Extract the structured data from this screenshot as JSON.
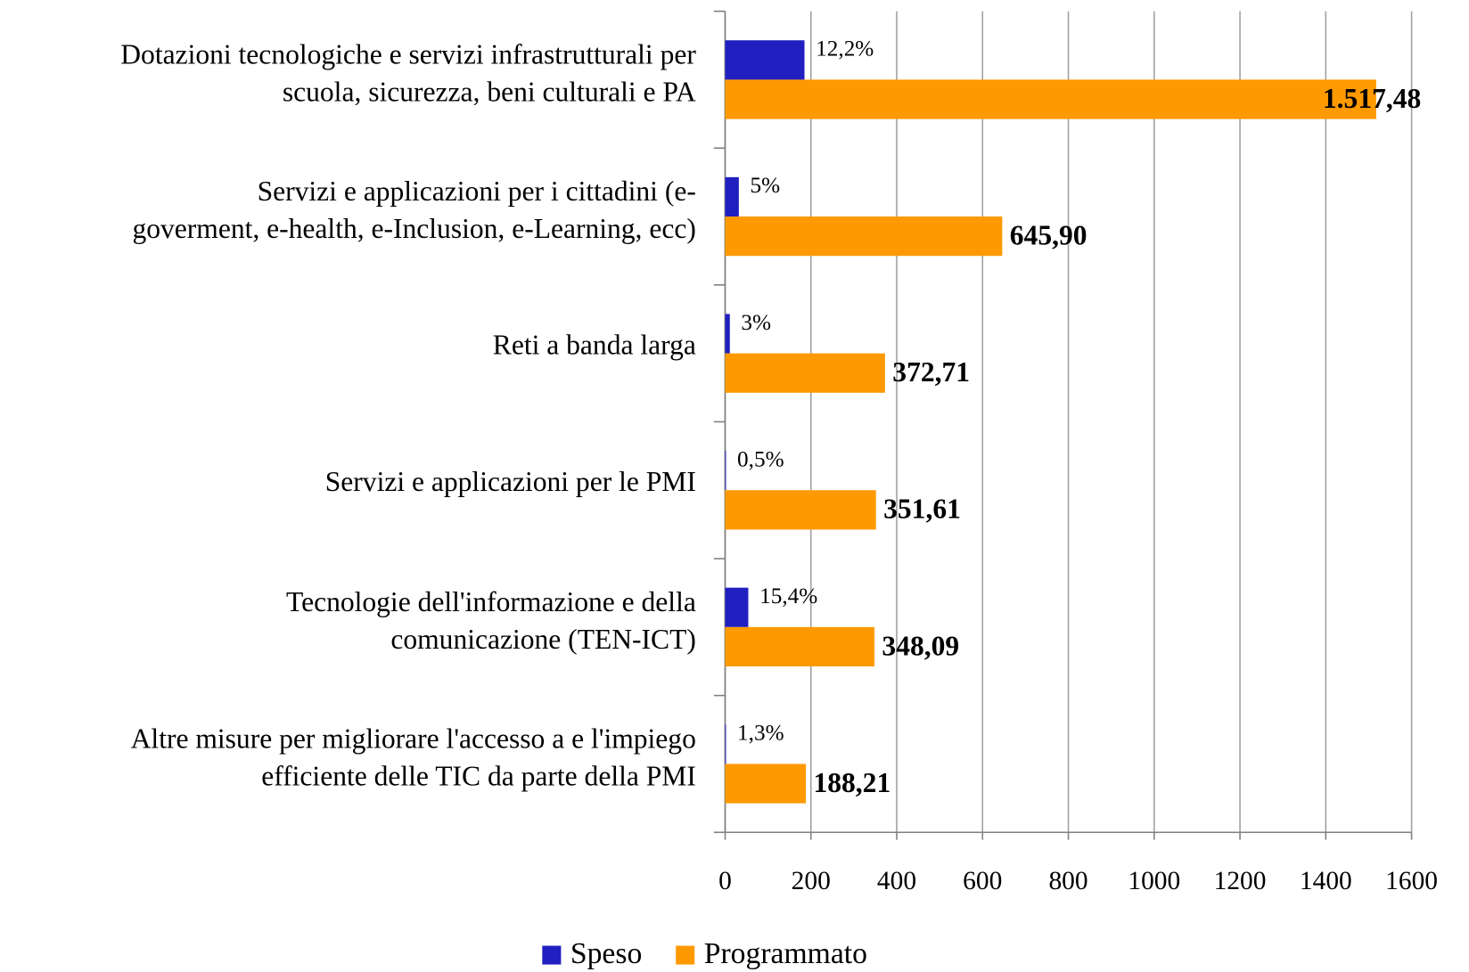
{
  "chart_data": {
    "type": "bar",
    "orientation": "horizontal",
    "categories": [
      [
        "Dotazioni tecnologiche e servizi infrastrutturali per",
        "scuola, sicurezza, beni culturali e PA"
      ],
      [
        "Servizi e applicazioni  per i cittadini (e-",
        "goverment, e-health, e-Inclusion, e-Learning, ecc)"
      ],
      [
        "Reti a banda larga"
      ],
      [
        "Servizi e applicazioni  per le PMI"
      ],
      [
        "Tecnologie dell'informazione e della",
        "comunicazione (TEN-ICT)"
      ],
      [
        "Altre misure per migliorare l'accesso a e l'impiego",
        "efficiente delle TIC da parte della PMI"
      ]
    ],
    "series": [
      {
        "name": "Speso",
        "color": "#2020c0",
        "values": [
          185,
          32,
          11,
          2,
          54,
          2
        ],
        "percent_labels": [
          "12,2%",
          "5%",
          "3%",
          "0,5%",
          "15,4%",
          "1,3%"
        ]
      },
      {
        "name": "Programmato",
        "color": "#ff9900",
        "values": [
          1517.48,
          645.9,
          372.71,
          351.61,
          348.09,
          188.21
        ],
        "value_labels": [
          "1.517,48",
          "645,90",
          "372,71",
          "351,61",
          "348,09",
          "188,21"
        ]
      }
    ],
    "xlim": [
      0,
      1600
    ],
    "xticks": [
      0,
      200,
      400,
      600,
      800,
      1000,
      1200,
      1400,
      1600
    ],
    "grid": true,
    "legend": "bottom"
  }
}
